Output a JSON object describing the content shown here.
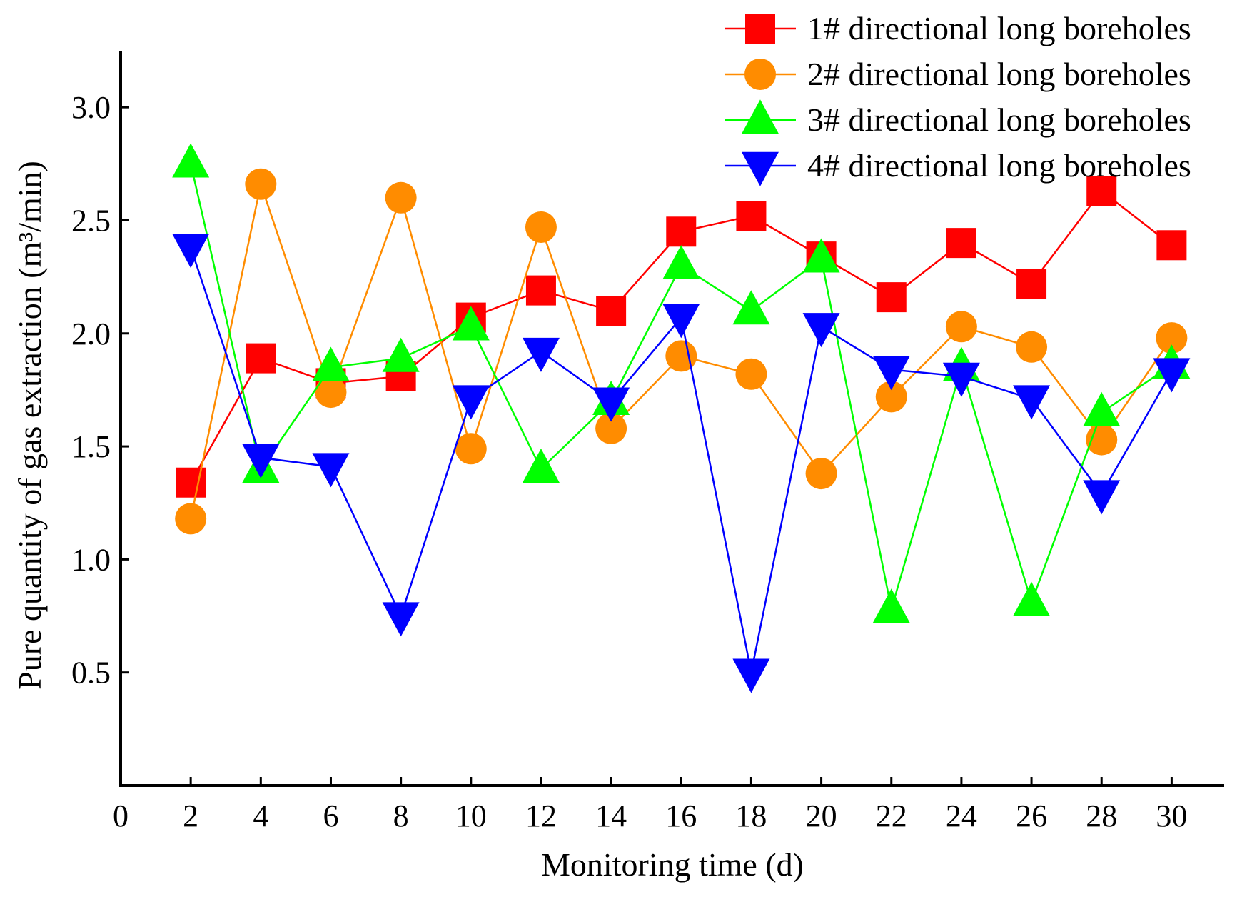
{
  "chart_data": {
    "type": "line",
    "title": "",
    "xlabel": "Monitoring time (d)",
    "ylabel": "Pure quantity of gas extraction (m³/min)",
    "xlim": [
      0,
      31.5
    ],
    "ylim": [
      0,
      3.25
    ],
    "xticks": [
      0,
      2,
      4,
      6,
      8,
      10,
      12,
      14,
      16,
      18,
      20,
      22,
      24,
      26,
      28,
      30
    ],
    "yticks": [
      0.5,
      1.0,
      1.5,
      2.0,
      2.5,
      3.0
    ],
    "ytick_labels": [
      "0.5",
      "1.0",
      "1.5",
      "2.0",
      "2.5",
      "3.0"
    ],
    "grid": false,
    "legend_position": "top-right",
    "x": [
      2,
      4,
      6,
      8,
      10,
      12,
      14,
      16,
      18,
      20,
      22,
      24,
      26,
      28,
      30
    ],
    "series": [
      {
        "name": "1# directional long boreholes",
        "color": "#ff0000",
        "marker": "square",
        "values": [
          1.34,
          1.89,
          1.78,
          1.81,
          2.07,
          2.19,
          2.1,
          2.45,
          2.52,
          2.34,
          2.16,
          2.4,
          2.22,
          2.63,
          2.39
        ]
      },
      {
        "name": "2# directional long boreholes",
        "color": "#ff8c00",
        "marker": "circle",
        "values": [
          1.18,
          2.66,
          1.74,
          2.6,
          1.49,
          2.47,
          1.58,
          1.9,
          1.82,
          1.38,
          1.72,
          2.03,
          1.94,
          1.53,
          1.98
        ]
      },
      {
        "name": "3# directional long boreholes",
        "color": "#00ff00",
        "marker": "triangle-up",
        "values": [
          2.75,
          1.4,
          1.85,
          1.89,
          2.03,
          1.4,
          1.7,
          2.3,
          2.1,
          2.33,
          0.78,
          1.85,
          0.81,
          1.65,
          1.86
        ]
      },
      {
        "name": "4# directional long boreholes",
        "color": "#0000ff",
        "marker": "triangle-down",
        "values": [
          2.38,
          1.45,
          1.41,
          0.75,
          1.71,
          1.92,
          1.7,
          2.07,
          0.5,
          2.03,
          1.84,
          1.81,
          1.71,
          1.29,
          1.83
        ]
      }
    ]
  }
}
